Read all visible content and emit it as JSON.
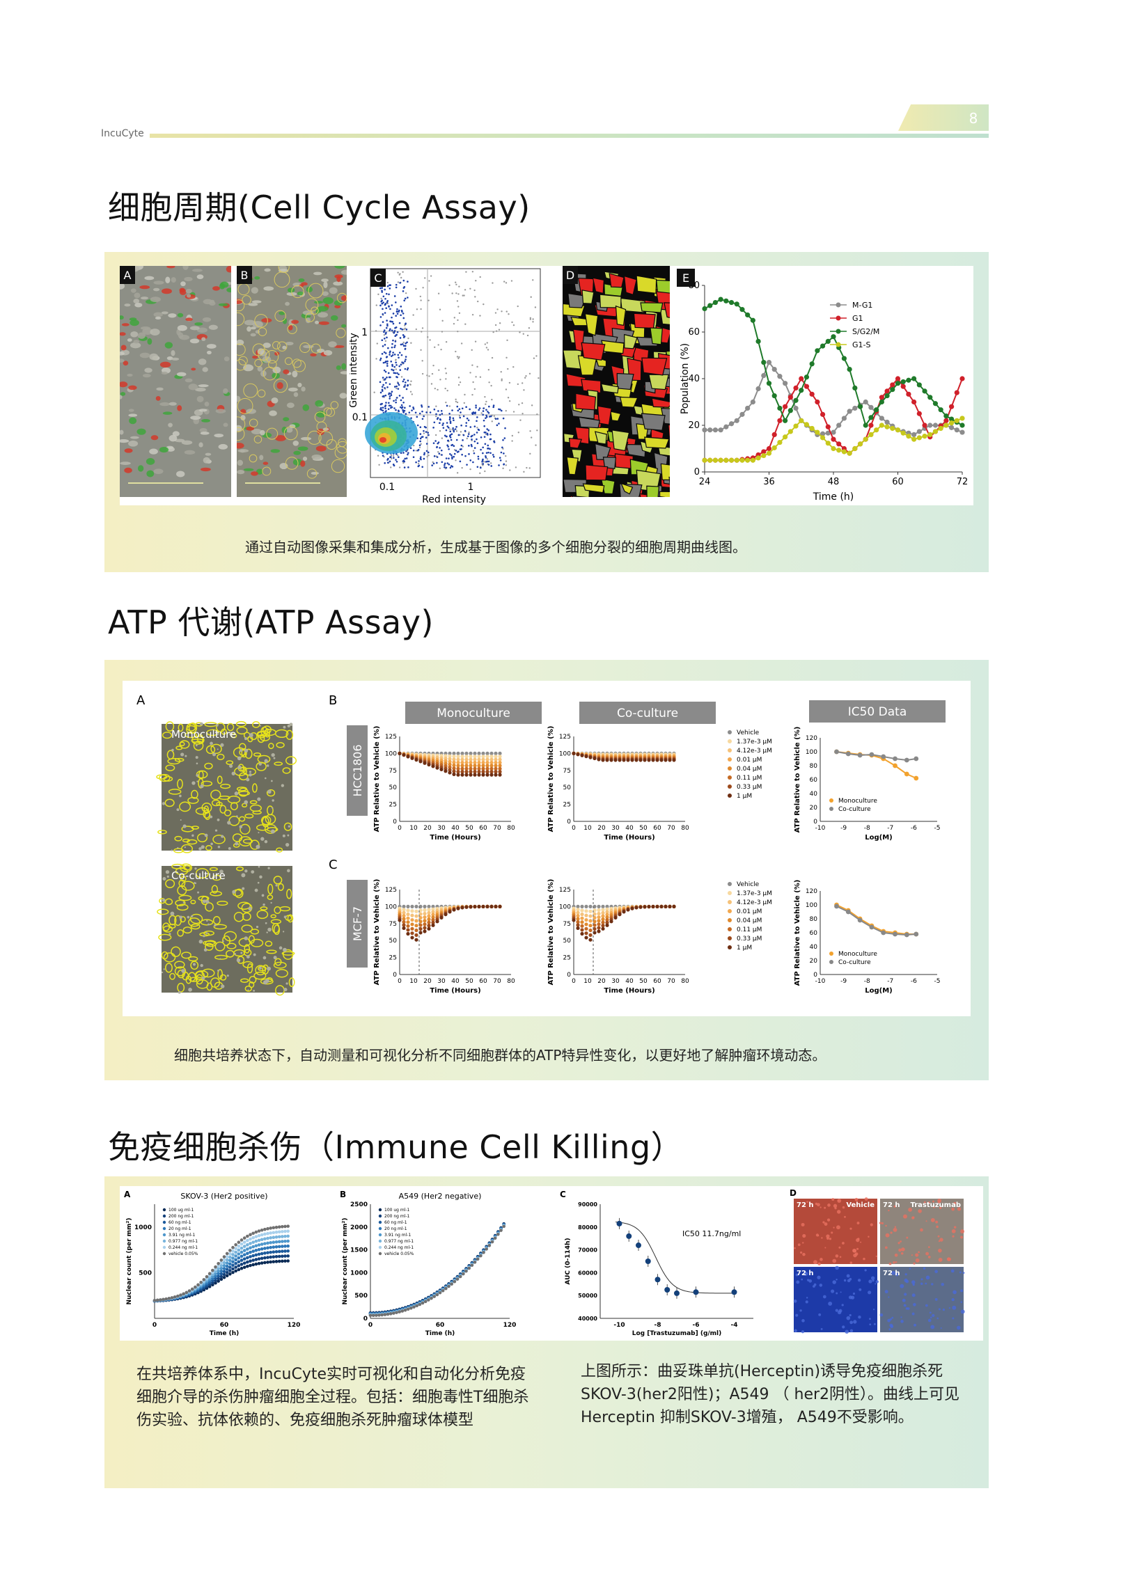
{
  "header": {
    "brand": "IncuCyte",
    "page_number": "8"
  },
  "sections": {
    "cell_cycle": {
      "title": "细胞周期(Cell Cycle Assay)",
      "caption": "通过自动图像采集和集成分析，生成基于图像的多个细胞分裂的细胞周期曲线图。",
      "panel_labels": [
        "A",
        "B",
        "C",
        "D",
        "E"
      ],
      "scatter": {
        "ylabel": "Green intensity",
        "xlabel": "Red intensity",
        "ticks": [
          "0.1",
          "1"
        ]
      },
      "timecourse": {
        "xlabel": "Time (h)",
        "ylabel": "Population (%)",
        "xticks": [
          "24",
          "36",
          "48",
          "60",
          "72"
        ],
        "yticks": [
          "0",
          "20",
          "40",
          "60",
          "80"
        ],
        "legend": [
          "M-G1",
          "G1",
          "S/G2/M",
          "G1-S"
        ]
      }
    },
    "atp": {
      "title": "ATP 代谢(ATP Assay)",
      "caption": "细胞共培养状态下，自动测量和可视化分析不同细胞群体的ATP特异性变化，以更好地了解肿瘤环境动态。",
      "panel_labels": [
        "A",
        "B",
        "C"
      ],
      "image_labels": [
        "Monoculture",
        "Co-culture"
      ],
      "headers": [
        "Monoculture",
        "Co-culture",
        "IC50 Data"
      ],
      "row_labels": [
        "HCC1806",
        "MCF-7"
      ],
      "time_xlabel": "Time (Hours)",
      "time_ylabel": "ATP Relative to Vehicle (%)",
      "ic50_xlabel": "Log(M)",
      "time_xticks": [
        "0",
        "10",
        "20",
        "30",
        "40",
        "50",
        "60",
        "70",
        "80"
      ],
      "yticks": [
        "0",
        "25",
        "50",
        "75",
        "100",
        "125"
      ],
      "ic50_xticks": [
        "-10",
        "-9",
        "-8",
        "-7",
        "-6",
        "-5"
      ],
      "ic50_yticks": [
        "0",
        "20",
        "40",
        "60",
        "80",
        "100",
        "120"
      ],
      "legend_doses": [
        "Vehicle",
        "1.37e-3 μM",
        "4.12e-3 μM",
        "0.01 μM",
        "0.04 μM",
        "0.11 μM",
        "0.33 μM",
        "1 μM"
      ],
      "ic50_legend": [
        "Monoculture",
        "Co-culture"
      ]
    },
    "immune": {
      "title": "免疫细胞杀伤（Immune Cell Killing）",
      "panel_labels": [
        "A",
        "B",
        "C",
        "D"
      ],
      "chart_a_title": "SKOV-3 (Her2 positive)",
      "chart_b_title": "A549 (Her2 negative)",
      "nuclear_ylabel": "Nuclear count (per mm²)",
      "time_xlabel": "Time (h)",
      "chart_a_yticks": [
        "500",
        "1000"
      ],
      "chart_b_yticks": [
        "0",
        "500",
        "1000",
        "1500",
        "2000",
        "2500"
      ],
      "time_xticks": [
        "0",
        "60",
        "120"
      ],
      "dose_legend": [
        "100 ug ml-1",
        "200 ng ml-1",
        "60 ng ml-1",
        "20 ng ml-1",
        "3.91 ng ml-1",
        "0.977 ng ml-1",
        "0.244 ng ml-1",
        "vehicle 0.05%"
      ],
      "chart_c": {
        "ylabel": "AUC (0-114h)",
        "xlabel": "Log [Trastuzumab] (g/ml)",
        "annotation": "IC50 11.7ng/ml",
        "yticks": [
          "40000",
          "50000",
          "60000",
          "70000",
          "80000",
          "90000"
        ],
        "xticks": [
          "-10",
          "-8",
          "-6",
          "-4"
        ]
      },
      "image_tags": [
        "72 h",
        "72 h",
        "72 h",
        "72 h"
      ],
      "image_titles": [
        "Vehicle",
        "Trastuzumab"
      ],
      "para_left": "在共培养体系中，IncuCyte实时可视化和自动化分析免疫细胞介导的杀伤肿瘤细胞全过程。包括：细胞毒性T细胞杀伤实验、抗体依赖的、免疫细胞杀死肿瘤球体模型",
      "para_right": "上图所示：曲妥珠单抗(Herceptin)诱导免疫细胞杀死SKOV-3(her2阳性)；A549 （ her2阴性）。曲线上可见Herceptin 抑制SKOV-3增殖， A549不受影响。"
    }
  },
  "colors": {
    "mg1": "#8c8c8c",
    "g1": "#d0202a",
    "sg2m": "#1f7a2a",
    "g1s": "#c7c81c",
    "mono": "#f2a22e",
    "co": "#888888",
    "dark_blue": "#0d3c6e",
    "light_blue": "#8fc2e6"
  },
  "chart_data": [
    {
      "type": "line",
      "xlabel": "Time (h)",
      "ylabel": "Population (%)",
      "xlim": [
        24,
        72
      ],
      "ylim": [
        0,
        80
      ],
      "x": [
        24,
        27,
        30,
        33,
        36,
        39,
        42,
        45,
        48,
        51,
        54,
        57,
        60,
        63,
        66,
        69,
        72
      ],
      "series": [
        {
          "name": "M-G1",
          "values": [
            18,
            18,
            22,
            30,
            47,
            38,
            22,
            16,
            17,
            26,
            30,
            23,
            18,
            16,
            20,
            20,
            17
          ]
        },
        {
          "name": "G1",
          "values": [
            5,
            5,
            5,
            6,
            10,
            28,
            40,
            30,
            14,
            8,
            14,
            32,
            40,
            30,
            15,
            22,
            40
          ]
        },
        {
          "name": "S/G2/M",
          "values": [
            70,
            74,
            72,
            65,
            38,
            22,
            35,
            52,
            58,
            44,
            20,
            30,
            38,
            40,
            32,
            24,
            20
          ]
        },
        {
          "name": "G1-S",
          "values": [
            5,
            5,
            5,
            5,
            8,
            15,
            22,
            17,
            10,
            8,
            14,
            20,
            18,
            14,
            16,
            20,
            23
          ]
        }
      ]
    },
    {
      "type": "scatter",
      "xlabel": "Red intensity",
      "ylabel": "Green intensity",
      "log_scale": true
    }
  ]
}
